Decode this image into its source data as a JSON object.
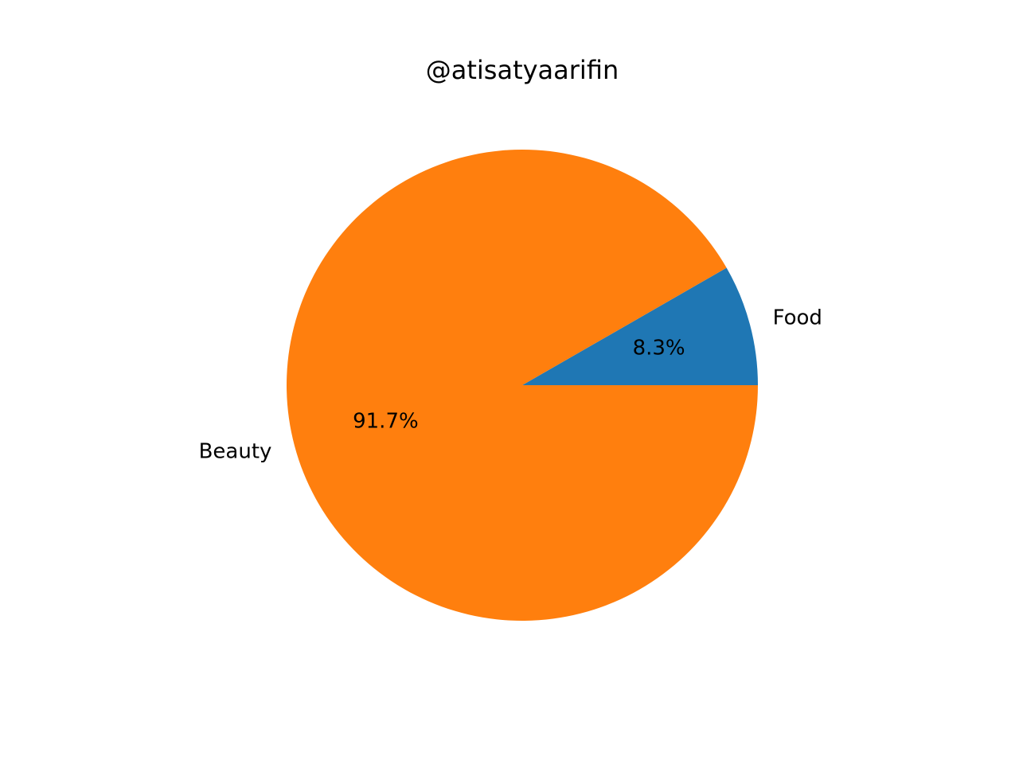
{
  "chart_data": {
    "type": "pie",
    "title": "@atisatyaarifin",
    "slices": [
      {
        "label": "Food",
        "percent": 8.3,
        "percent_label": "8.3%",
        "color": "#1f77b4"
      },
      {
        "label": "Beauty",
        "percent": 91.7,
        "percent_label": "91.7%",
        "color": "#ff7f0e"
      }
    ],
    "start_angle_deg": 0,
    "direction": "counterclockwise",
    "legend": "none"
  }
}
